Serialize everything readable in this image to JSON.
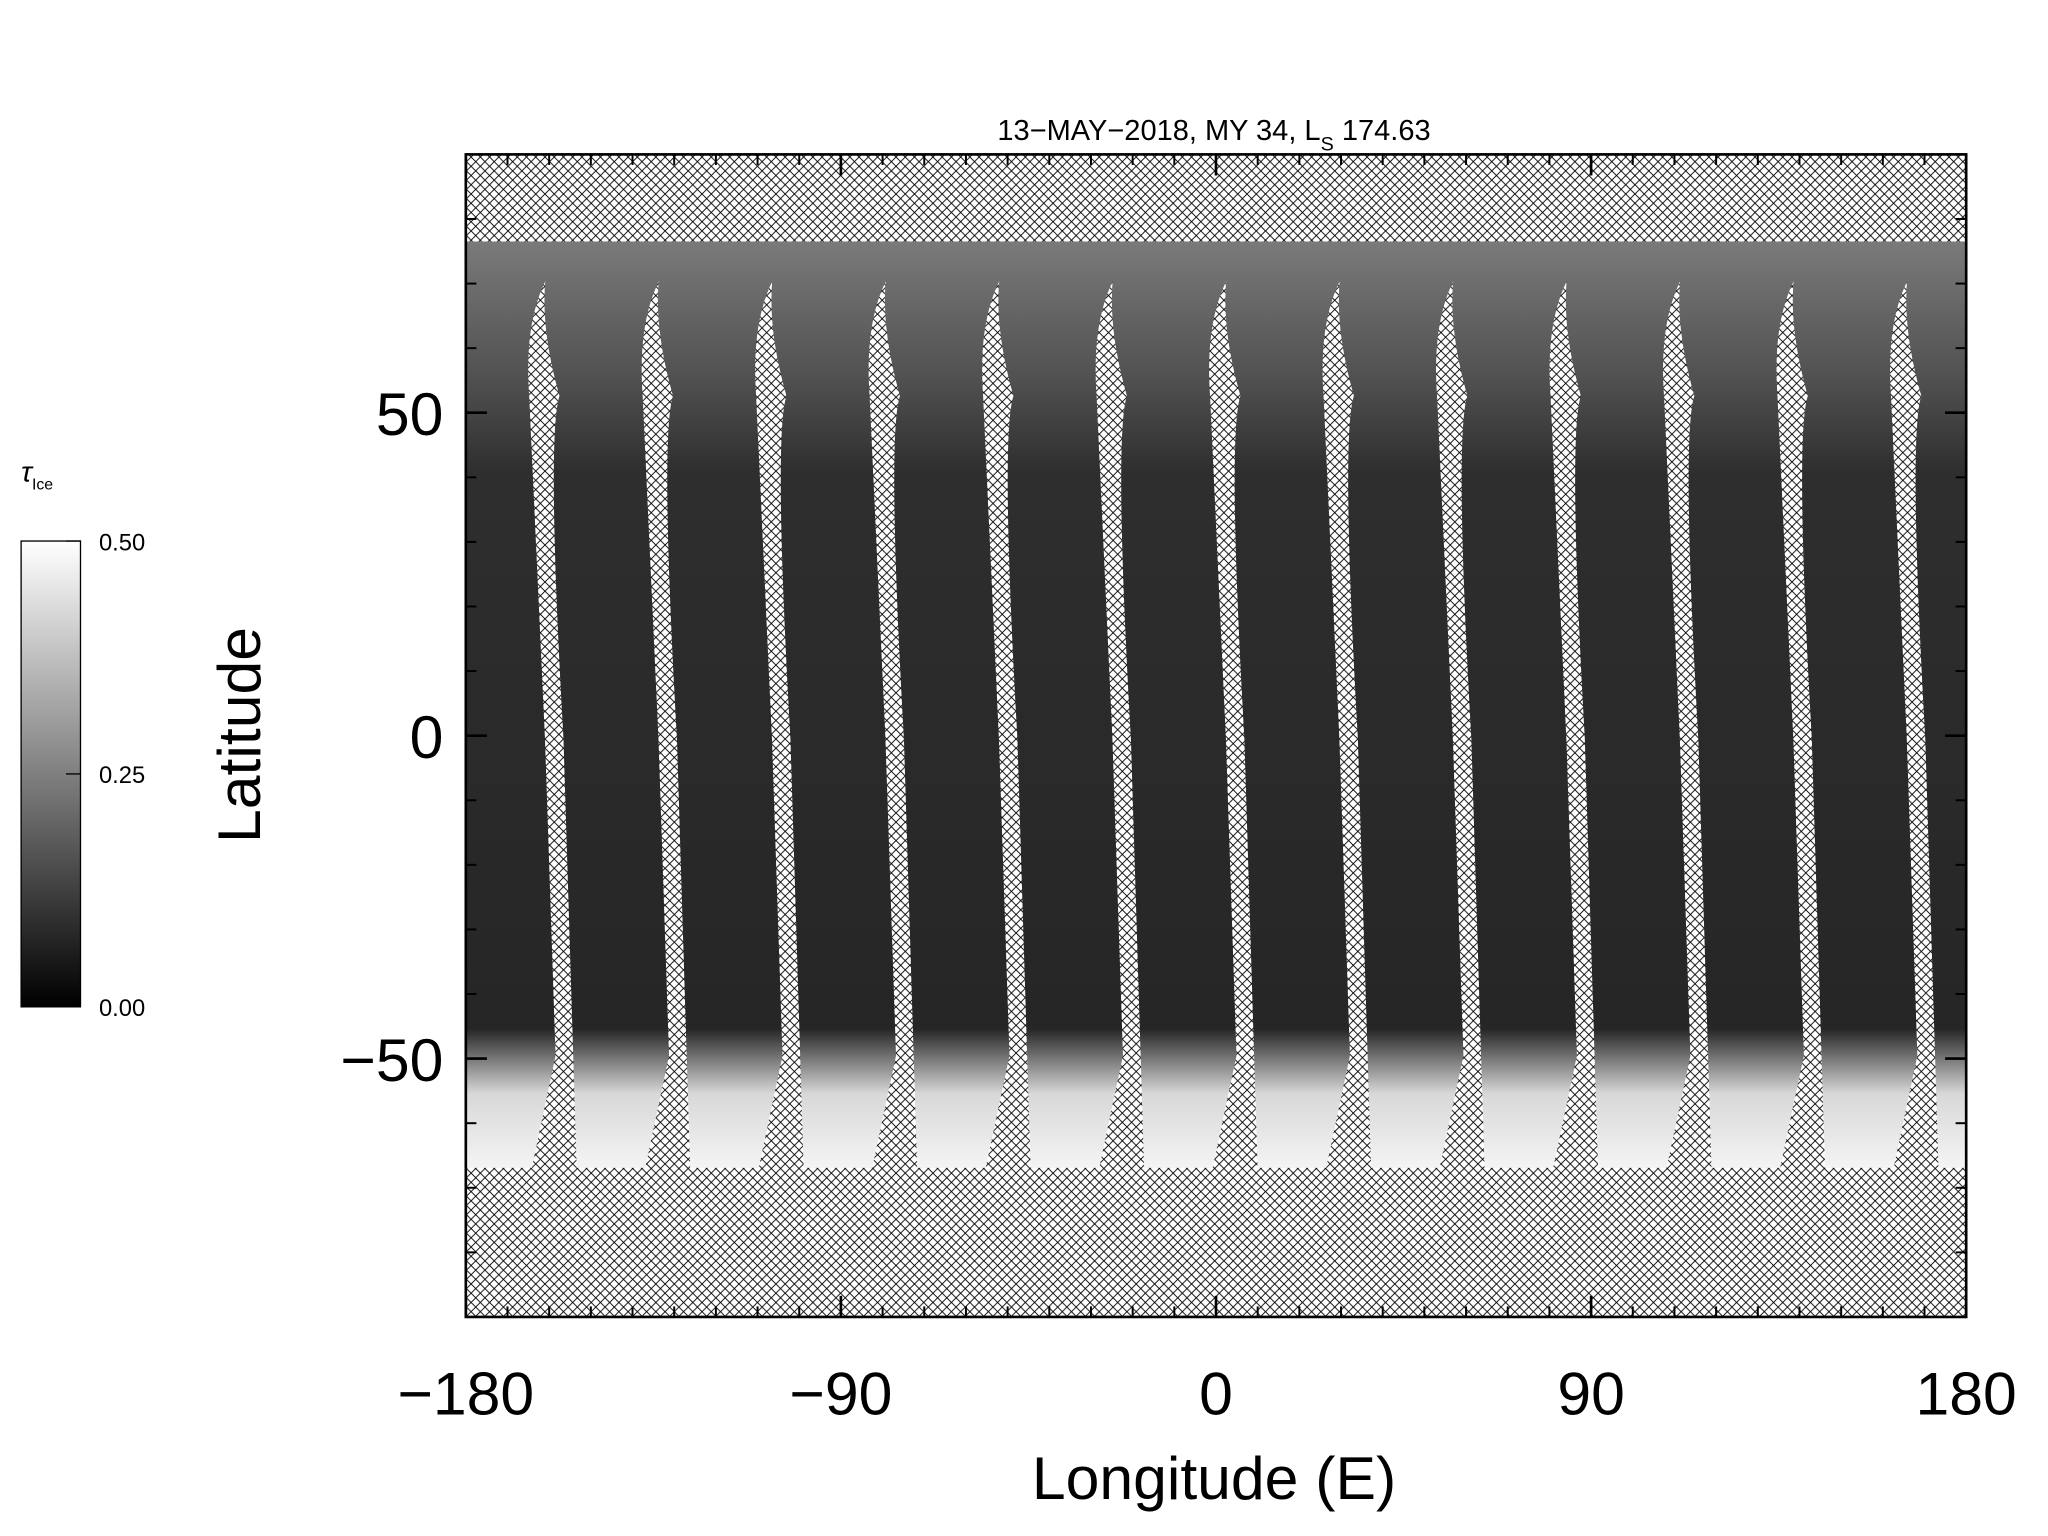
{
  "chart_data": {
    "type": "map",
    "title": "13−MAY−2018, MY 34,  L",
    "title_sub": "S",
    "title_end": " 174.63",
    "x_label": "Longitude (E)",
    "y_label": "Latitude",
    "xlim": [
      -180,
      180
    ],
    "xticks": [
      {
        "value": -180,
        "label": "−180"
      },
      {
        "value": -90,
        "label": "−90"
      },
      0,
      90,
      180
    ],
    "ylim": [
      -90,
      90
    ],
    "yticks": [
      {
        "value": -50,
        "label": "−50"
      },
      0,
      50
    ],
    "colorbar_label": "τ",
    "colorbar_label_sub": "Ice",
    "colorbar_lim": [
      0,
      0.5
    ],
    "colorbar_ticks": [
      {
        "value": 0,
        "label": "0.00"
      },
      {
        "value": 0.25,
        "label": "0.25"
      },
      {
        "value": 0.5,
        "label": "0.50"
      }
    ]
  }
}
